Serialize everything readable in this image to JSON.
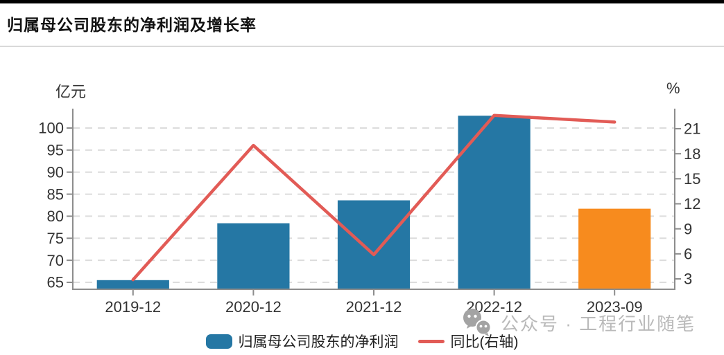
{
  "header": {
    "title": "归属母公司股东的净利润及增长率"
  },
  "chart_data": {
    "type": "bar+line",
    "categories": [
      "2019-12",
      "2020-12",
      "2021-12",
      "2022-12",
      "2023-09"
    ],
    "series": [
      {
        "name": "归属母公司股东的净利润",
        "type": "bar",
        "axis": "left",
        "values": [
          65.5,
          78.4,
          83.6,
          102.8,
          81.7
        ],
        "colors": [
          "#2577a4",
          "#2577a4",
          "#2577a4",
          "#2577a4",
          "#f78b1e"
        ]
      },
      {
        "name": "同比(右轴)",
        "type": "line",
        "axis": "right",
        "values": [
          2.9,
          19.0,
          5.9,
          22.6,
          21.8
        ],
        "color": "#e25b56"
      }
    ],
    "left_axis": {
      "label": "亿元",
      "ticks": [
        65,
        70,
        75,
        80,
        85,
        90,
        95,
        100
      ],
      "ylim": [
        63.4,
        104.4
      ]
    },
    "right_axis": {
      "label": "%",
      "ticks": [
        3,
        6,
        9,
        12,
        15,
        18,
        21
      ],
      "ylim": [
        1.8,
        23.4
      ]
    },
    "grid": true,
    "grid_color": "#dcdcdc",
    "axis_color": "#8c8c8c",
    "tick_label_color": "#333333",
    "legend_position": "bottom"
  },
  "watermark": {
    "icon": "wechat-icon",
    "text": "公众号 · 工程行业随笔"
  }
}
